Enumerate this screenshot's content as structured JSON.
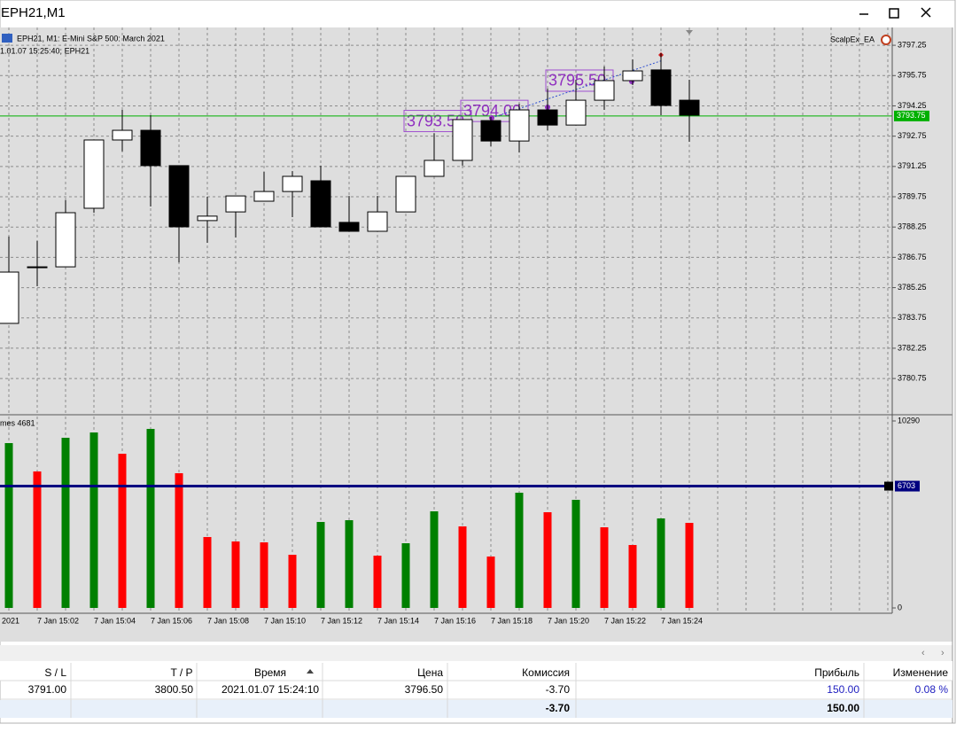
{
  "window": {
    "title": "EPH21,M1"
  },
  "chart_data": {
    "type": "candlestick",
    "info": "EPH21, M1:  E-Mini S&P 500: March 2021",
    "info_time": "1.01.07 15:25:40; EPH21",
    "expert": "ScalpEx_EA",
    "x_labels": [
      "2021",
      "7 Jan 15:02",
      "7 Jan 15:04",
      "7 Jan 15:06",
      "7 Jan 15:08",
      "7 Jan 15:10",
      "7 Jan 15:12",
      "7 Jan 15:14",
      "7 Jan 15:16",
      "7 Jan 15:18",
      "7 Jan 15:20",
      "7 Jan 15:22",
      "7 Jan 15:24"
    ],
    "open": [
      3783.48,
      3786.28,
      3786.28,
      3789.18,
      3792.56,
      3793.04,
      3791.29,
      3788.57,
      3789.0,
      3789.53,
      3790.01,
      3790.54,
      3788.48,
      3788.04,
      3789.0,
      3790.76,
      3791.55,
      3793.52,
      3792.51,
      3794.05,
      3793.3,
      3794.53,
      3795.5,
      3796.03,
      3794.53
    ],
    "high": [
      3787.78,
      3787.56,
      3789.58,
      3792.56,
      3794.05,
      3793.79,
      3791.29,
      3789.75,
      3789.79,
      3790.98,
      3791.02,
      3791.29,
      3789.79,
      3789.79,
      3790.76,
      3792.9,
      3793.57,
      3793.7,
      3794.36,
      3795.1,
      3795.54,
      3796.2,
      3796.55,
      3796.86,
      3795.54
    ],
    "low": [
      3783.48,
      3785.32,
      3786.28,
      3788.96,
      3792.0,
      3789.27,
      3786.5,
      3787.47,
      3787.73,
      3789.53,
      3788.74,
      3788.26,
      3788.04,
      3788.04,
      3789.0,
      3790.76,
      3791.29,
      3792.25,
      3791.94,
      3793.04,
      3793.3,
      3794.05,
      3795.28,
      3793.79,
      3792.47
    ],
    "close": [
      3786.02,
      3786.28,
      3788.96,
      3792.56,
      3793.04,
      3791.29,
      3788.26,
      3788.79,
      3789.79,
      3790.01,
      3790.76,
      3788.26,
      3788.04,
      3789.0,
      3790.76,
      3791.55,
      3793.57,
      3792.51,
      3794.05,
      3793.3,
      3794.53,
      3795.5,
      3795.98,
      3794.27,
      3793.79
    ],
    "up_color": "#ffffff",
    "down_color": "#000000",
    "ylim": [
      3779,
      3798
    ],
    "yticks": [
      3797.25,
      3795.75,
      3794.25,
      3792.75,
      3791.25,
      3789.75,
      3788.25,
      3786.75,
      3785.25,
      3783.75,
      3782.25,
      3780.75
    ],
    "grid": true,
    "price_line": {
      "value": 3793.75,
      "label": "3793.75",
      "color": "#00b000"
    },
    "annotations": [
      {
        "bar": 15,
        "value": 3793.5,
        "label": "3793.50"
      },
      {
        "bar": 17,
        "value": 3794.0,
        "label": "3794.00"
      },
      {
        "bar": 20,
        "value": 3795.5,
        "label": "3795.50"
      }
    ],
    "volume_name": "mes 4681",
    "volumes": [
      9071,
      7511,
      9364,
      9657,
      8486,
      9852,
      7413,
      3902,
      3658,
      3609,
      2926,
      4731,
      4828,
      2877,
      3560,
      5316,
      4487,
      2829,
      6340,
      5267,
      5950,
      4438,
      3463,
      4926,
      4681
    ],
    "volume_colors": [
      "#008000",
      "#ff0000",
      "#008000",
      "#008000",
      "#ff0000",
      "#008000",
      "#ff0000",
      "#ff0000",
      "#ff0000",
      "#ff0000",
      "#ff0000",
      "#008000",
      "#008000",
      "#ff0000",
      "#008000",
      "#008000",
      "#ff0000",
      "#ff0000",
      "#008000",
      "#ff0000",
      "#008000",
      "#ff0000",
      "#ff0000",
      "#008000",
      "#ff0000"
    ],
    "volume_ylim": [
      0,
      10290
    ],
    "volume_yticks": [
      0,
      10290
    ],
    "volume_level": {
      "value": 6703,
      "label": "6703",
      "color": "#000080"
    }
  },
  "table": {
    "header": [
      "S / L",
      "T / P",
      "Время",
      "Цена",
      "Комиссия",
      "Прибыль",
      "Изменение"
    ],
    "rows": [
      [
        "3791.00",
        "3800.50",
        "2021.01.07 15:24:10",
        "3796.50",
        "-3.70",
        "150.00",
        "0.08 %"
      ]
    ],
    "totals": [
      "-3.70",
      "150.00"
    ]
  }
}
